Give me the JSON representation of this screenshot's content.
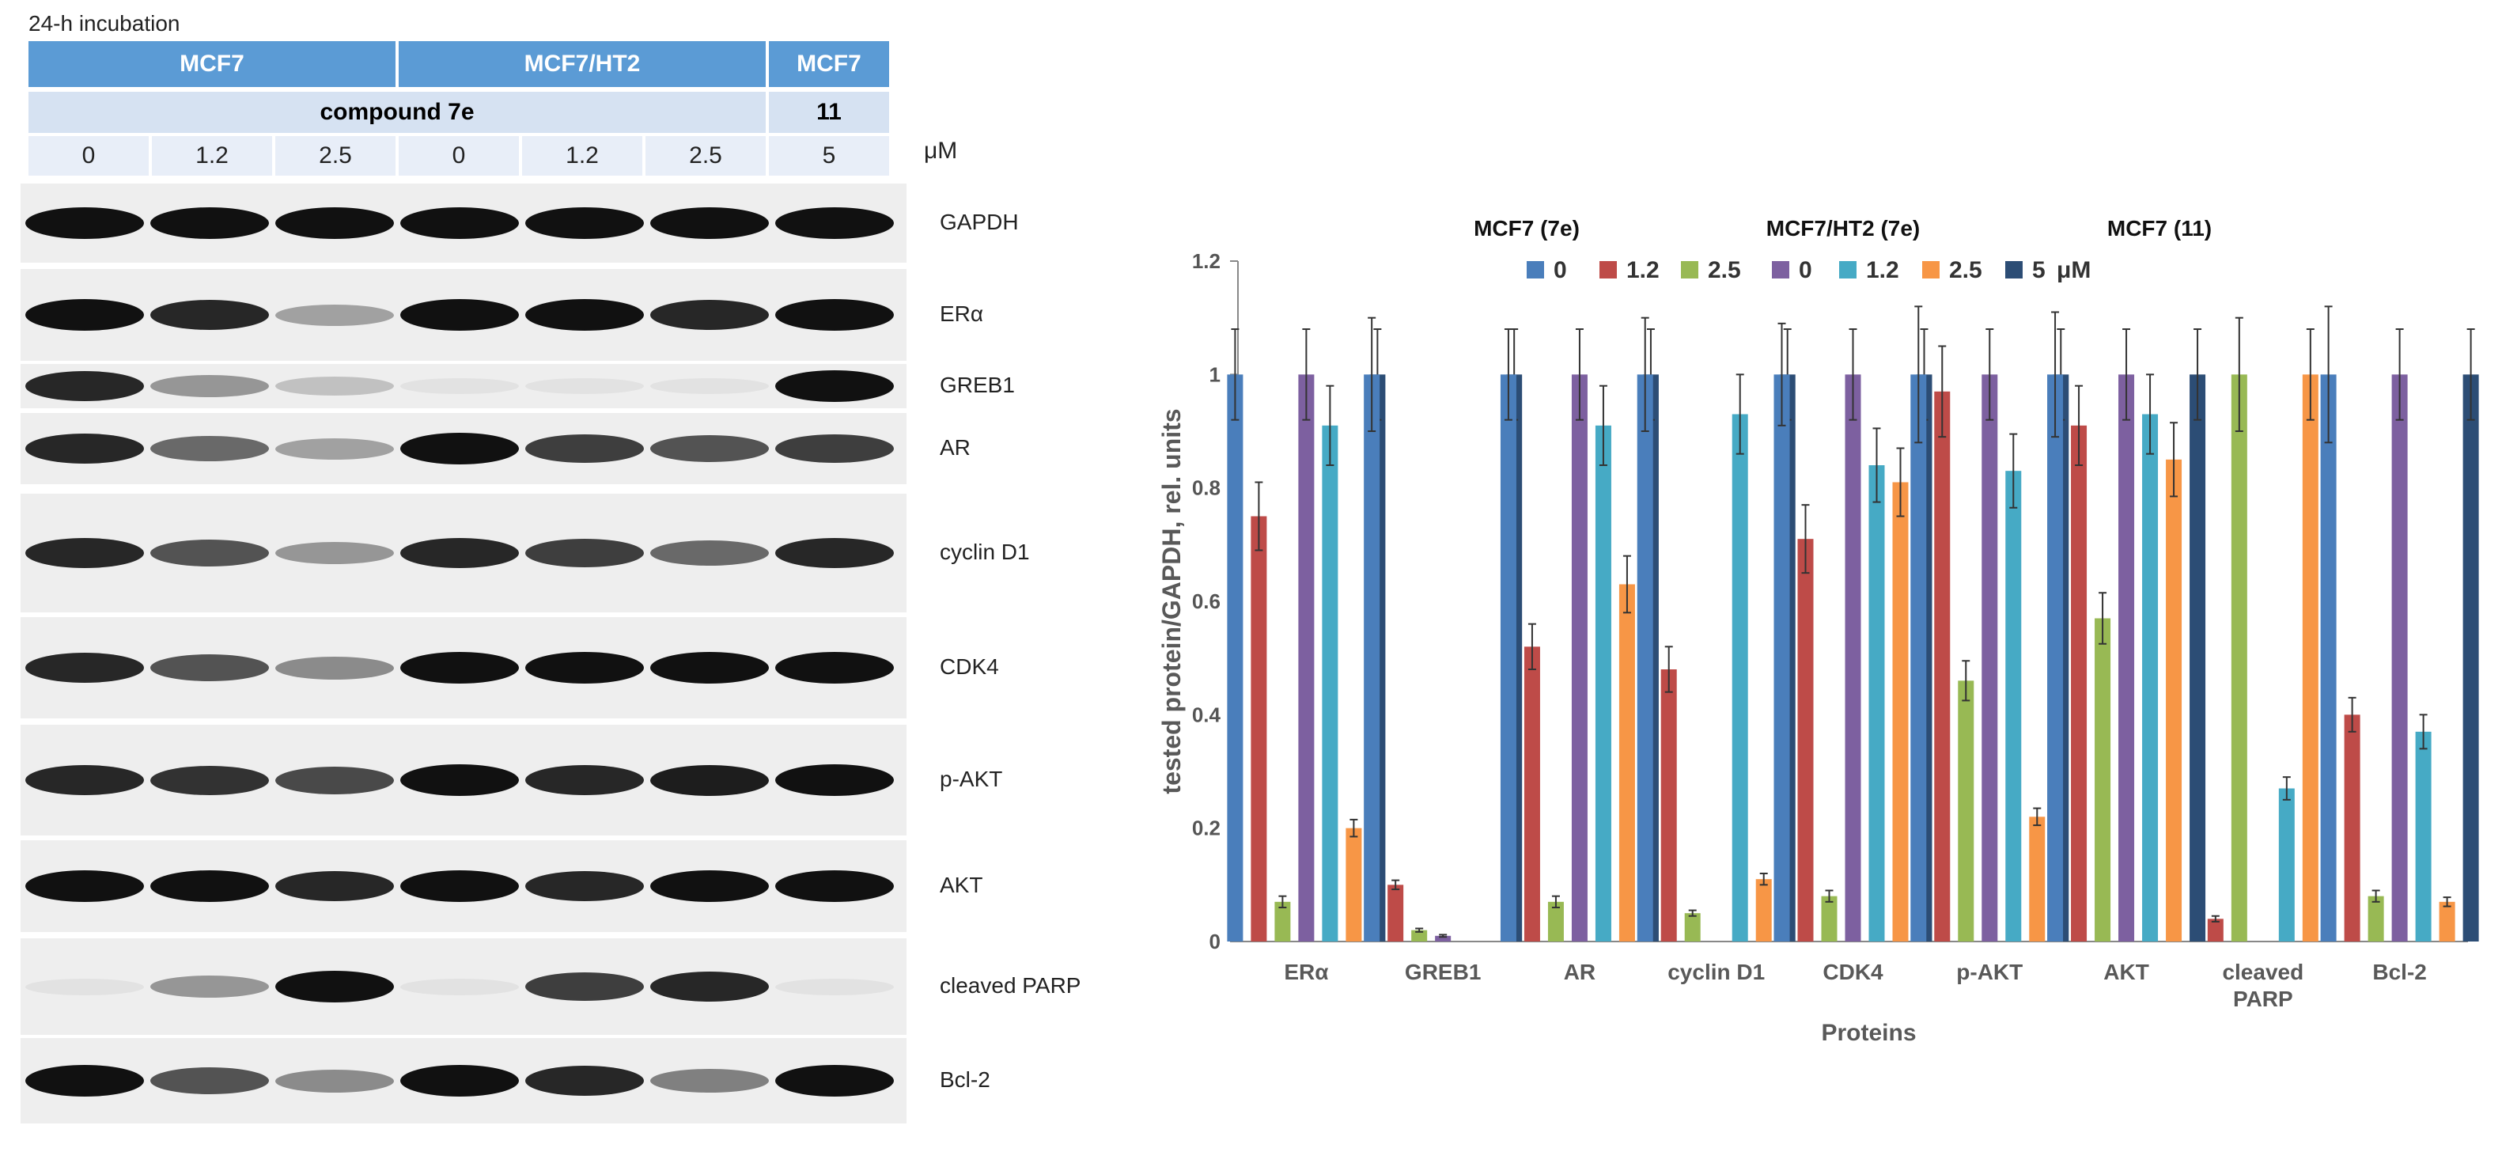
{
  "header": {
    "title": "24-h incubation",
    "row1": [
      {
        "label": "MCF7",
        "span": 3
      },
      {
        "label": "MCF7/HT2",
        "span": 3
      },
      {
        "label": "MCF7",
        "span": 1
      }
    ],
    "row2": [
      {
        "label": "compound 7e",
        "span": 6
      },
      {
        "label": "11",
        "span": 1
      }
    ],
    "concentrations": [
      "0",
      "1.2",
      "2.5",
      "0",
      "1.2",
      "2.5",
      "5"
    ],
    "unit": "μM"
  },
  "blots": [
    {
      "label": "GAPDH",
      "intensity": [
        1,
        1,
        1,
        1,
        1,
        1,
        1
      ]
    },
    {
      "label": "ERα",
      "intensity": [
        1,
        0.9,
        0.35,
        1,
        1,
        0.9,
        1
      ]
    },
    {
      "label": "GREB1",
      "intensity": [
        0.9,
        0.4,
        0.2,
        0.03,
        0.02,
        0.02,
        1
      ]
    },
    {
      "label": "AR",
      "intensity": [
        0.9,
        0.6,
        0.35,
        1,
        0.8,
        0.7,
        0.8
      ]
    },
    {
      "label": "cyclin D1",
      "intensity": [
        0.9,
        0.7,
        0.4,
        0.9,
        0.8,
        0.6,
        0.9
      ]
    },
    {
      "label": "CDK4",
      "intensity": [
        0.9,
        0.7,
        0.45,
        1,
        1,
        1,
        1
      ]
    },
    {
      "label": "p-AKT",
      "intensity": [
        0.9,
        0.85,
        0.75,
        1,
        0.9,
        0.95,
        1
      ]
    },
    {
      "label": "AKT",
      "intensity": [
        1,
        1,
        0.9,
        1,
        0.9,
        1,
        1
      ]
    },
    {
      "label": "cleaved PARP",
      "intensity": [
        0.05,
        0.4,
        1,
        0.05,
        0.8,
        0.9,
        0.05
      ]
    },
    {
      "label": "Bcl-2",
      "intensity": [
        1,
        0.7,
        0.45,
        1,
        0.9,
        0.5,
        1
      ]
    }
  ],
  "chart_data": {
    "type": "bar",
    "title": "",
    "xlabel": "Proteins",
    "ylabel": "tested protein/GAPDH, rel. units",
    "ylim": [
      0,
      1.2
    ],
    "yticks": [
      "0",
      "0.2",
      "0.4",
      "0.6",
      "0.8",
      "1",
      "1.2"
    ],
    "categories": [
      "ERα",
      "GREB1",
      "AR",
      "cyclin D1",
      "CDK4",
      "p-AKT",
      "AKT",
      "cleaved|PARP",
      "Bcl-2"
    ],
    "legend_groups": [
      "MCF7 (7e)",
      "MCF7/HT2 (7e)",
      "MCF7 (11)"
    ],
    "legend_unit": "μM",
    "legend_placement": "top",
    "grid": false,
    "series": [
      {
        "name": "0",
        "color": "#4a7ebb",
        "values": [
          1,
          1,
          1,
          1,
          1,
          1,
          1,
          0,
          1
        ],
        "err": [
          0.08,
          0.1,
          0.08,
          0.1,
          0.09,
          0.12,
          0.11,
          0,
          0.12
        ]
      },
      {
        "name": "1.2",
        "color": "#be4b48",
        "values": [
          0.75,
          0.1,
          0.52,
          0.48,
          0.71,
          0.97,
          0.91,
          0.04,
          0.4
        ],
        "err": [
          0.06,
          0.008,
          0.04,
          0.04,
          0.06,
          0.08,
          0.07,
          0.005,
          0.03
        ]
      },
      {
        "name": "2.5",
        "color": "#98b954",
        "values": [
          0.07,
          0.02,
          0.07,
          0.05,
          0.08,
          0.46,
          0.57,
          1,
          0.08
        ],
        "err": [
          0.01,
          0.003,
          0.01,
          0.005,
          0.01,
          0.035,
          0.045,
          0.1,
          0.01
        ]
      },
      {
        "name": "0",
        "color": "#7d60a0",
        "values": [
          1,
          0.01,
          1,
          0,
          1,
          1,
          1,
          0,
          1
        ],
        "err": [
          0.08,
          0.002,
          0.08,
          0,
          0.08,
          0.08,
          0.08,
          0,
          0.08
        ]
      },
      {
        "name": "1.2",
        "color": "#46aac5",
        "values": [
          0.91,
          0,
          0.91,
          0.93,
          0.84,
          0.83,
          0.93,
          0.27,
          0.37
        ],
        "err": [
          0.07,
          0,
          0.07,
          0.07,
          0.065,
          0.065,
          0.07,
          0.02,
          0.03
        ]
      },
      {
        "name": "2.5",
        "color": "#f79646",
        "values": [
          0.2,
          0,
          0.63,
          0.11,
          0.81,
          0.22,
          0.85,
          1,
          0.07
        ],
        "err": [
          0.015,
          0,
          0.05,
          0.01,
          0.06,
          0.015,
          0.065,
          0.08,
          0.008
        ]
      },
      {
        "name": "5",
        "color": "#2c4d75",
        "values": [
          1,
          1,
          1,
          1,
          1,
          1,
          1,
          0,
          1
        ],
        "err": [
          0.08,
          0.08,
          0.08,
          0.08,
          0.08,
          0.08,
          0.08,
          0,
          0.08
        ]
      }
    ]
  }
}
